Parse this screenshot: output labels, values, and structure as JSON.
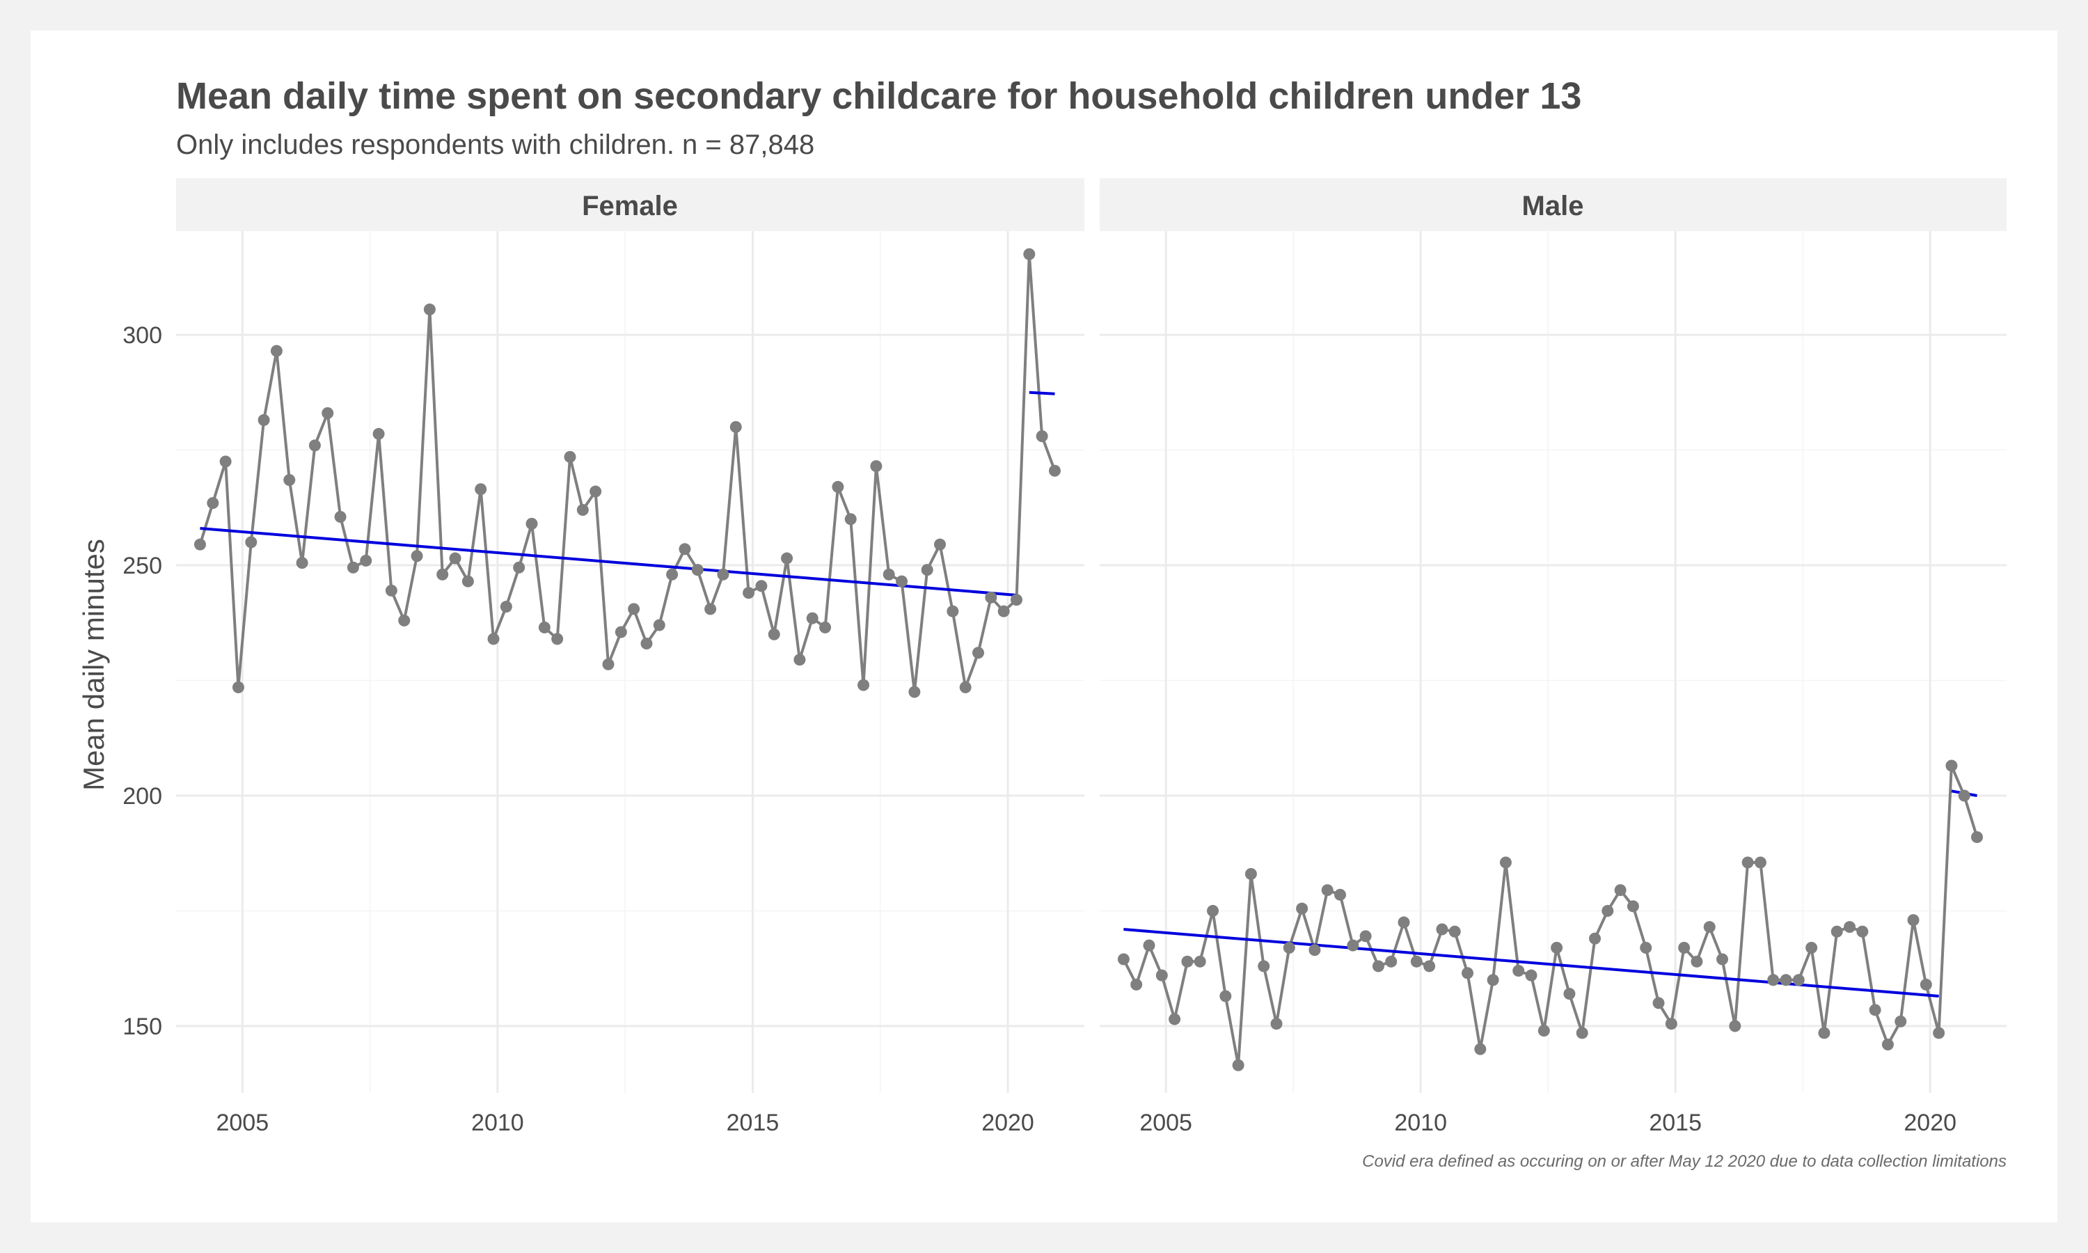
{
  "chart_data": {
    "type": "line",
    "title": "Mean daily time spent on secondary childcare for household children under 13",
    "subtitle": "Only includes respondents with children. n = 87,848",
    "ylabel": "Mean daily minutes",
    "xlabel": "",
    "caption": "Covid era defined as occuring on or after May 12 2020 due to data collection limitations",
    "xlim": [
      2003.7,
      2021.5
    ],
    "ylim": [
      135.5,
      322.5
    ],
    "x_ticks": [
      2005,
      2010,
      2015,
      2020
    ],
    "y_ticks": [
      150,
      200,
      250,
      300
    ],
    "grid": true,
    "point_color": "#7f7f7f",
    "trend_color": "#0000dd",
    "panels": [
      {
        "label": "Female",
        "series": [
          {
            "x": [
              2004.17,
              2004.42,
              2004.67,
              2004.92,
              2005.17,
              2005.42,
              2005.67,
              2005.92,
              2006.17,
              2006.42,
              2006.67,
              2006.92,
              2007.17,
              2007.42,
              2007.67,
              2007.92,
              2008.17,
              2008.42,
              2008.67,
              2008.92,
              2009.17,
              2009.42,
              2009.67,
              2009.92,
              2010.17,
              2010.42,
              2010.67,
              2010.92,
              2011.17,
              2011.42,
              2011.67,
              2011.92,
              2012.17,
              2012.42,
              2012.67,
              2012.92,
              2013.17,
              2013.42,
              2013.67,
              2013.92,
              2014.17,
              2014.42,
              2014.67,
              2014.92,
              2015.17,
              2015.42,
              2015.67,
              2015.92,
              2016.17,
              2016.42,
              2016.67,
              2016.92,
              2017.17,
              2017.42,
              2017.67,
              2017.92,
              2018.17,
              2018.42,
              2018.67,
              2018.92,
              2019.17,
              2019.42,
              2019.67,
              2019.92,
              2020.17,
              2020.42,
              2020.67,
              2020.92
            ],
            "y": [
              254.5,
              263.5,
              272.5,
              223.5,
              255,
              281.5,
              296.5,
              268.5,
              250.5,
              276,
              283,
              260.5,
              249.5,
              251,
              278.5,
              244.5,
              238,
              252,
              305.5,
              248,
              251.5,
              246.5,
              266.5,
              234,
              241,
              249.5,
              259,
              236.5,
              234,
              273.5,
              262,
              266,
              228.5,
              235.5,
              240.5,
              233,
              237,
              248,
              253.5,
              249,
              240.5,
              248,
              280,
              244,
              245.5,
              235,
              251.5,
              229.5,
              238.5,
              236.5,
              267,
              260,
              224,
              271.5,
              248,
              246.5,
              222.5,
              249,
              254.5,
              240,
              223.5,
              231,
              243,
              240,
              242.5,
              317.5,
              278,
              270.5
            ]
          }
        ],
        "trend_lines": [
          {
            "x": [
              2004.17,
              2020.17
            ],
            "y": [
              258,
              243.5
            ]
          },
          {
            "x": [
              2020.42,
              2020.92
            ],
            "y": [
              287.5,
              287.2
            ]
          }
        ]
      },
      {
        "label": "Male",
        "series": [
          {
            "x": [
              2004.17,
              2004.42,
              2004.67,
              2004.92,
              2005.17,
              2005.42,
              2005.67,
              2005.92,
              2006.17,
              2006.42,
              2006.67,
              2006.92,
              2007.17,
              2007.42,
              2007.67,
              2007.92,
              2008.17,
              2008.42,
              2008.67,
              2008.92,
              2009.17,
              2009.42,
              2009.67,
              2009.92,
              2010.17,
              2010.42,
              2010.67,
              2010.92,
              2011.17,
              2011.42,
              2011.67,
              2011.92,
              2012.17,
              2012.42,
              2012.67,
              2012.92,
              2013.17,
              2013.42,
              2013.67,
              2013.92,
              2014.17,
              2014.42,
              2014.67,
              2014.92,
              2015.17,
              2015.42,
              2015.67,
              2015.92,
              2016.17,
              2016.42,
              2016.67,
              2016.92,
              2017.17,
              2017.42,
              2017.67,
              2017.92,
              2018.17,
              2018.42,
              2018.67,
              2018.92,
              2019.17,
              2019.42,
              2019.67,
              2019.92,
              2020.17,
              2020.42,
              2020.67,
              2020.92
            ],
            "y": [
              164.5,
              159,
              167.5,
              161,
              151.5,
              164,
              164,
              175,
              156.5,
              141.5,
              183,
              163,
              150.5,
              167,
              175.5,
              166.5,
              179.5,
              178.5,
              167.5,
              169.5,
              163,
              164,
              172.5,
              164,
              163,
              171,
              170.5,
              161.5,
              145,
              160,
              185.5,
              162,
              161,
              149,
              167,
              157,
              148.5,
              169,
              175,
              179.5,
              176,
              167,
              155,
              150.5,
              167,
              164,
              171.5,
              164.5,
              150,
              185.5,
              185.5,
              160,
              160,
              160,
              167,
              148.5,
              170.5,
              171.5,
              170.5,
              153.5,
              146,
              151,
              173,
              159,
              148.5,
              206.5,
              200,
              191
            ]
          }
        ],
        "trend_lines": [
          {
            "x": [
              2004.17,
              2020.17
            ],
            "y": [
              171,
              156.5
            ]
          },
          {
            "x": [
              2020.42,
              2020.92
            ],
            "y": [
              201,
              200
            ]
          }
        ]
      }
    ]
  }
}
